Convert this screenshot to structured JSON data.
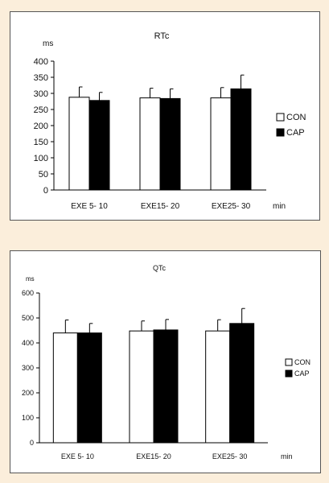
{
  "colors": {
    "page_background": "#fbeedb",
    "con_fill": "#ffffff",
    "cap_fill": "#000000"
  },
  "chart_data": [
    {
      "type": "bar",
      "title": "RTc",
      "unit": "ms",
      "xlabel": "min",
      "categories": [
        "EXE 5- 10",
        "EXE15- 20",
        "EXE25- 30"
      ],
      "series": [
        {
          "name": "CON",
          "values": [
            288,
            286,
            286
          ],
          "errors": [
            32,
            30,
            32
          ],
          "color": "#ffffff"
        },
        {
          "name": "CAP",
          "values": [
            278,
            284,
            314
          ],
          "errors": [
            25,
            30,
            43
          ],
          "color": "#000000"
        }
      ],
      "ylim": [
        0,
        400
      ],
      "yticks": [
        0,
        50,
        100,
        150,
        200,
        250,
        300,
        350,
        400
      ],
      "legend": "right",
      "grid": false
    },
    {
      "type": "bar",
      "title": "QTc",
      "unit": "ms",
      "xlabel": "min",
      "categories": [
        "EXE 5- 10",
        "EXE15- 20",
        "EXE25- 30"
      ],
      "series": [
        {
          "name": "CON",
          "values": [
            440,
            448,
            448
          ],
          "errors": [
            52,
            40,
            45
          ],
          "color": "#ffffff"
        },
        {
          "name": "CAP",
          "values": [
            440,
            452,
            478
          ],
          "errors": [
            38,
            42,
            60
          ],
          "color": "#000000"
        }
      ],
      "ylim": [
        0,
        600
      ],
      "yticks": [
        0,
        100,
        200,
        300,
        400,
        500,
        600
      ],
      "legend": "right",
      "grid": false
    }
  ]
}
